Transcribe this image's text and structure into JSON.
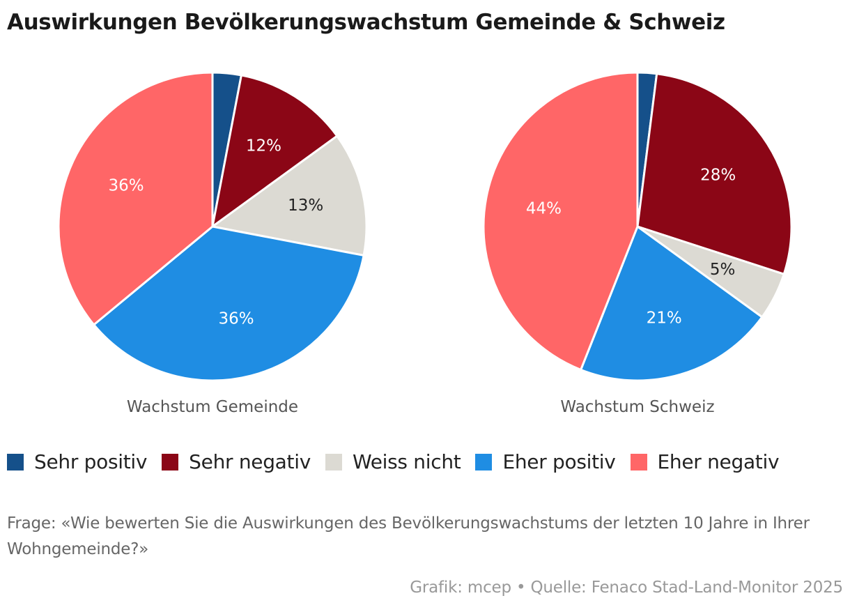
{
  "title": "Auswirkungen Bevölkerungswachstum Gemeinde & Schweiz",
  "chart_data": [
    {
      "type": "pie",
      "subtitle": "Wachstum Gemeinde",
      "slices": [
        {
          "category": "Sehr positiv",
          "value": 3,
          "label": ""
        },
        {
          "category": "Sehr negativ",
          "value": 12,
          "label": "12%"
        },
        {
          "category": "Weiss nicht",
          "value": 13,
          "label": "13%"
        },
        {
          "category": "Eher positiv",
          "value": 36,
          "label": "36%"
        },
        {
          "category": "Eher negativ",
          "value": 36,
          "label": "36%"
        }
      ]
    },
    {
      "type": "pie",
      "subtitle": "Wachstum Schweiz",
      "slices": [
        {
          "category": "Sehr positiv",
          "value": 2,
          "label": ""
        },
        {
          "category": "Sehr negativ",
          "value": 28,
          "label": "28%"
        },
        {
          "category": "Weiss nicht",
          "value": 5,
          "label": "5%"
        },
        {
          "category": "Eher positiv",
          "value": 21,
          "label": "21%"
        },
        {
          "category": "Eher negativ",
          "value": 44,
          "label": "44%"
        }
      ]
    }
  ],
  "legend": [
    {
      "label": "Sehr positiv",
      "color": "#15508a"
    },
    {
      "label": "Sehr negativ",
      "color": "#8b0616"
    },
    {
      "label": "Weiss nicht",
      "color": "#dcdad3"
    },
    {
      "label": "Eher positiv",
      "color": "#1f8de3"
    },
    {
      "label": "Eher negativ",
      "color": "#ff6667"
    }
  ],
  "label_colors": {
    "Sehr positiv": "#ffffff",
    "Sehr negativ": "#ffffff",
    "Weiss nicht": "#222222",
    "Eher positiv": "#ffffff",
    "Eher negativ": "#ffffff"
  },
  "question": "Frage: «Wie bewerten Sie die Auswirkungen des Bevölkerungswachstums der letzten 10 Jahre in Ihrer Wohngemeinde?»",
  "source": "Grafik: mcep • Quelle: Fenaco Stad-Land-Monitor 2025"
}
